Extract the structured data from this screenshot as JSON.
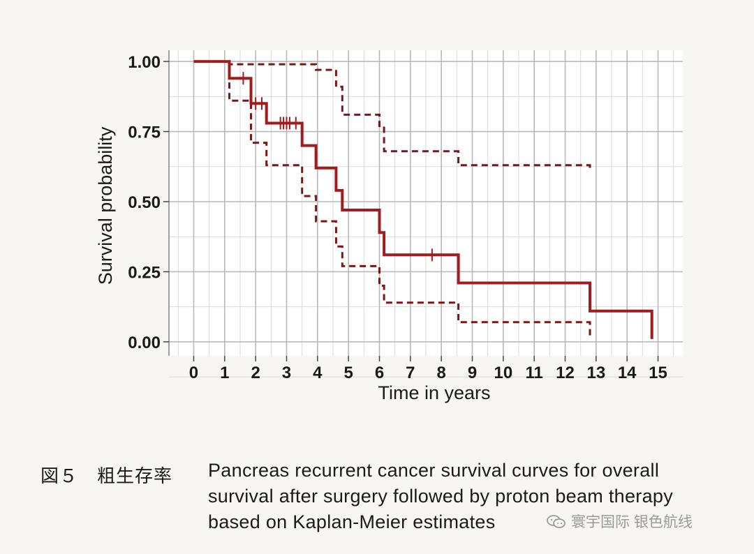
{
  "chart_data": {
    "type": "line",
    "xlabel": "Time in years",
    "ylabel": "Survival probability",
    "xlim": [
      -0.8,
      15.8
    ],
    "ylim": [
      -0.05,
      1.04
    ],
    "xticks": [
      0,
      1,
      2,
      3,
      4,
      5,
      6,
      7,
      8,
      9,
      10,
      11,
      12,
      13,
      14,
      15
    ],
    "yticks": [
      0.0,
      0.25,
      0.5,
      0.75,
      1.0
    ],
    "ytick_labels": [
      "0.00",
      "0.25",
      "0.50",
      "0.75",
      "1.00"
    ],
    "grid": true,
    "colors": {
      "survival": "#a11c1c",
      "ci": "#7a1717"
    },
    "series": [
      {
        "role": "survival",
        "style": "solid",
        "points": [
          [
            0,
            1.0
          ],
          [
            1.15,
            1.0
          ],
          [
            1.15,
            0.94
          ],
          [
            1.85,
            0.94
          ],
          [
            1.85,
            0.85
          ],
          [
            2.35,
            0.85
          ],
          [
            2.35,
            0.78
          ],
          [
            3.5,
            0.78
          ],
          [
            3.5,
            0.7
          ],
          [
            3.95,
            0.7
          ],
          [
            3.95,
            0.62
          ],
          [
            4.6,
            0.62
          ],
          [
            4.6,
            0.54
          ],
          [
            4.8,
            0.54
          ],
          [
            4.8,
            0.47
          ],
          [
            6.0,
            0.47
          ],
          [
            6.0,
            0.39
          ],
          [
            6.15,
            0.39
          ],
          [
            6.15,
            0.31
          ],
          [
            8.55,
            0.31
          ],
          [
            8.55,
            0.21
          ],
          [
            12.8,
            0.21
          ],
          [
            12.8,
            0.11
          ],
          [
            14.8,
            0.11
          ],
          [
            14.8,
            0.01
          ]
        ],
        "censored": [
          [
            1.6,
            0.94
          ],
          [
            2.0,
            0.85
          ],
          [
            2.2,
            0.85
          ],
          [
            2.8,
            0.78
          ],
          [
            2.9,
            0.78
          ],
          [
            3.0,
            0.78
          ],
          [
            3.1,
            0.78
          ],
          [
            3.3,
            0.78
          ],
          [
            7.7,
            0.31
          ]
        ]
      },
      {
        "role": "ci-upper",
        "style": "dashed",
        "points": [
          [
            1.15,
            1.0
          ],
          [
            1.15,
            0.99
          ],
          [
            3.95,
            0.99
          ],
          [
            3.95,
            0.97
          ],
          [
            4.6,
            0.97
          ],
          [
            4.6,
            0.91
          ],
          [
            4.8,
            0.91
          ],
          [
            4.8,
            0.81
          ],
          [
            6.0,
            0.81
          ],
          [
            6.0,
            0.77
          ],
          [
            6.15,
            0.77
          ],
          [
            6.15,
            0.68
          ],
          [
            8.55,
            0.68
          ],
          [
            8.55,
            0.63
          ],
          [
            12.8,
            0.63
          ],
          [
            12.8,
            0.61
          ]
        ]
      },
      {
        "role": "ci-lower",
        "style": "dashed",
        "points": [
          [
            1.15,
            1.0
          ],
          [
            1.15,
            0.86
          ],
          [
            1.85,
            0.86
          ],
          [
            1.85,
            0.71
          ],
          [
            2.35,
            0.71
          ],
          [
            2.35,
            0.63
          ],
          [
            3.5,
            0.63
          ],
          [
            3.5,
            0.52
          ],
          [
            3.95,
            0.52
          ],
          [
            3.95,
            0.43
          ],
          [
            4.6,
            0.43
          ],
          [
            4.6,
            0.34
          ],
          [
            4.8,
            0.34
          ],
          [
            4.8,
            0.27
          ],
          [
            6.0,
            0.27
          ],
          [
            6.0,
            0.2
          ],
          [
            6.15,
            0.2
          ],
          [
            6.15,
            0.14
          ],
          [
            8.55,
            0.14
          ],
          [
            8.55,
            0.07
          ],
          [
            12.8,
            0.07
          ],
          [
            12.8,
            0.02
          ]
        ]
      }
    ]
  },
  "caption": {
    "label": "図５　粗生存率",
    "lines": [
      "Pancreas recurrent cancer survival curves for overall",
      "survival after surgery followed by proton beam therapy",
      "based on Kaplan-Meier estimates"
    ]
  },
  "watermark": {
    "icon": "wechat-icon",
    "text": "寰宇国际 银色航线"
  }
}
